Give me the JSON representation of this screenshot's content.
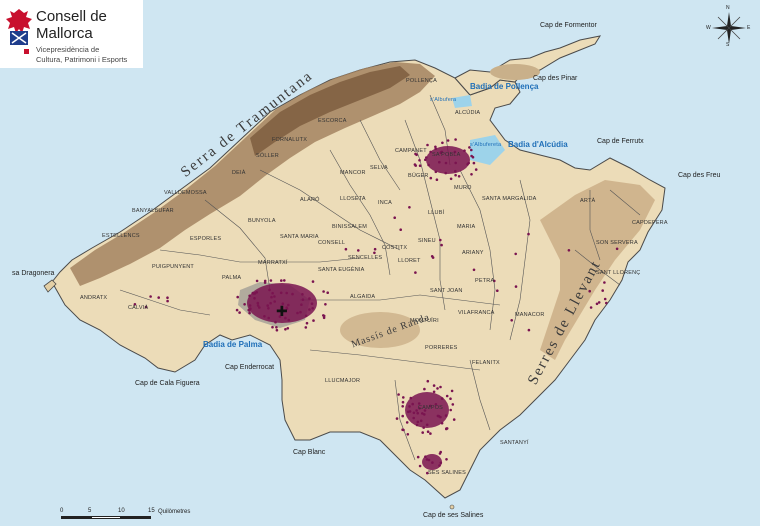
{
  "logo": {
    "title_line1": "Consell de",
    "title_line2": "Mallorca",
    "subtitle_line1": "Vicepresidència de",
    "subtitle_line2": "Cultura, Patrimoni i Esports",
    "brand_color": "#c8102e"
  },
  "compass": {
    "n": "N",
    "s": "S",
    "e": "E",
    "w": "W"
  },
  "ranges": {
    "tramuntana": "Serra de Tramuntana",
    "llevant": "Serres de Llevant",
    "randa": "Massís de Randa"
  },
  "bays": {
    "pollenca": "Badia de Pollença",
    "alcudia": "Badia d'Alcúdia",
    "palma": "Badia de Palma"
  },
  "capes": {
    "formentor": "Cap de Formentor",
    "pinar": "Cap des Pinar",
    "ferrutx": "Cap de Ferrutx",
    "freu": "Cap des Freu",
    "cala_figuera": "Cap de Cala Figuera",
    "enderrocat": "Cap Enderrocat",
    "blanc": "Cap Blanc",
    "salines": "Cap de ses Salines"
  },
  "islands": {
    "dragonera": "sa Dragonera"
  },
  "lagoon": "s'Albufera",
  "lagoon2": "s'Albufereta",
  "municipalities": {
    "pollenca": "POLLENÇA",
    "alcudia": "ALCÚDIA",
    "escorca": "ESCORCA",
    "fornalutx": "FORNALUTX",
    "soller": "SÓLLER",
    "deia": "DEIÀ",
    "valldemossa": "VALLDEMOSSA",
    "banyalbufar": "BANYALBUFAR",
    "estellencs": "ESTELLENCS",
    "esporles": "ESPORLES",
    "puigpunyent": "PUIGPUNYENT",
    "andratx": "ANDRATX",
    "calvia": "CALVIÀ",
    "palma": "PALMA",
    "marratxi": "MARRATXÍ",
    "bunyola": "BUNYOLA",
    "alaro": "ALARÓ",
    "mancor": "MANCOR",
    "selva": "SELVA",
    "campanet": "CAMPANET",
    "sapobla": "SA POBLA",
    "muro": "MURO",
    "buger": "BÚGER",
    "lloseta": "LLOSETA",
    "inca": "INCA",
    "santamaria": "SANTA MARIA",
    "consell": "CONSELL",
    "binissalem": "BINISSALEM",
    "sencelles": "SENCELLES",
    "costitx": "COSTITX",
    "lloret": "LLORET",
    "sineu": "SINEU",
    "llubi": "LLUBÍ",
    "santamargalida": "SANTA MARGALIDA",
    "mariasalut": "MARIA",
    "ariany": "ARIANY",
    "petra": "PETRA",
    "santaeugenia": "SANTA EUGÈNIA",
    "algaida": "ALGAIDA",
    "santjoan": "SANT JOAN",
    "montuiri": "MONTUÏRI",
    "vilafranca": "VILAFRANCA",
    "porreres": "PORRERES",
    "manacor": "MANACOR",
    "felanitx": "FELANITX",
    "llucmajor": "LLUCMAJOR",
    "campos": "CAMPOS",
    "santanyi": "SANTANYÍ",
    "sessalines": "SES SALINES",
    "arta": "ARTÀ",
    "capdepera": "CAPDEPERA",
    "sonservera": "SON SERVERA",
    "santllorenc": "SANT LLORENÇ"
  },
  "scale": {
    "t0": "0",
    "t5": "5",
    "t10": "10",
    "t15": "15",
    "unit": "Quilòmetres"
  }
}
